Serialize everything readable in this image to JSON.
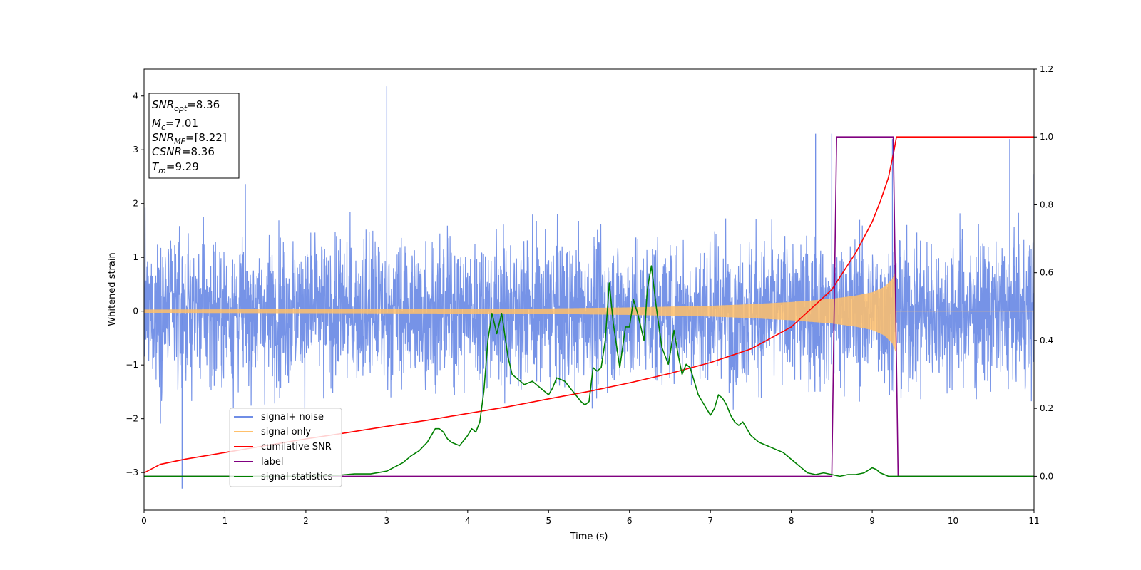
{
  "chart_data": {
    "type": "line",
    "title": "",
    "xlabel": "Time (s)",
    "ylabel": "Whitened strain",
    "xlim": [
      0,
      11
    ],
    "ylim": [
      -3.7,
      4.5
    ],
    "y2lim": [
      -0.1,
      1.2
    ],
    "xticks": [
      "0",
      "1",
      "2",
      "3",
      "4",
      "5",
      "6",
      "7",
      "8",
      "9",
      "10",
      "11"
    ],
    "yticks": [
      "−3",
      "−2",
      "−1",
      "0",
      "1",
      "2",
      "3",
      "4"
    ],
    "yticks_values": [
      -3,
      -2,
      -1,
      0,
      1,
      2,
      3,
      4
    ],
    "y2ticks": [
      "0.0",
      "0.2",
      "0.4",
      "0.6",
      "0.8",
      "1.0",
      "1.2"
    ],
    "y2ticks_values": [
      0,
      0.2,
      0.4,
      0.6,
      0.8,
      1.0,
      1.2
    ],
    "grid": false,
    "info_box": {
      "snr_opt": {
        "var": "SNR",
        "sub": "opt",
        "value": "=8.36"
      },
      "mc": {
        "var": "M",
        "sub": "c",
        "value": "=7.01"
      },
      "snr_mf": {
        "var": "SNR",
        "sub": "MF",
        "value": "=[8.22]"
      },
      "csnr": {
        "var": "CSNR",
        "sub": "",
        "value": "=8.36"
      },
      "tm": {
        "var": "T",
        "sub": "m",
        "value": "=9.29"
      }
    },
    "legend": {
      "placement": "lower-left",
      "entries": [
        {
          "label": "signal+ noise",
          "color": "#6f8de6"
        },
        {
          "label": "signal only",
          "color": "#ffc06b"
        },
        {
          "label": "cumilative SNR",
          "color": "#ff0000"
        },
        {
          "label": "label",
          "color": "#800080"
        },
        {
          "label": "signal statistics",
          "color": "#008000"
        }
      ]
    },
    "series": [
      {
        "name": "signal+ noise",
        "axis": "left",
        "color": "#6f8de6",
        "noise_envelope": {
          "typical_max": 2.0,
          "typical_min": -2.0,
          "peak_max": 4.18,
          "peak_min": -3.3
        },
        "spikes": [
          [
            0.47,
            -3.3
          ],
          [
            3.0,
            4.18
          ],
          [
            8.3,
            3.3
          ],
          [
            8.5,
            3.3
          ],
          [
            9.25,
            3.2
          ],
          [
            10.7,
            3.2
          ],
          [
            11.0,
            2.55
          ]
        ]
      },
      {
        "name": "signal only",
        "axis": "left",
        "color": "#ffc06b",
        "envelope": [
          [
            0,
            0.03
          ],
          [
            3,
            0.04
          ],
          [
            5,
            0.05
          ],
          [
            6,
            0.07
          ],
          [
            7,
            0.1
          ],
          [
            7.5,
            0.13
          ],
          [
            8,
            0.17
          ],
          [
            8.5,
            0.23
          ],
          [
            8.8,
            0.29
          ],
          [
            9.0,
            0.35
          ],
          [
            9.15,
            0.45
          ],
          [
            9.25,
            0.6
          ],
          [
            9.29,
            0.75
          ],
          [
            9.3,
            0.0
          ],
          [
            11,
            0.0
          ]
        ]
      },
      {
        "name": "cumilative SNR",
        "axis": "right",
        "color": "#ff0000",
        "x": [
          0,
          0.2,
          0.5,
          1,
          1.5,
          2,
          2.5,
          3,
          3.5,
          4,
          4.5,
          5,
          5.5,
          6,
          6.5,
          7,
          7.5,
          8,
          8.5,
          8.8,
          9.0,
          9.1,
          9.2,
          9.27,
          9.3,
          11
        ],
        "values": [
          0.01,
          0.035,
          0.05,
          0.07,
          0.09,
          0.11,
          0.128,
          0.147,
          0.165,
          0.185,
          0.205,
          0.228,
          0.25,
          0.275,
          0.303,
          0.335,
          0.375,
          0.44,
          0.55,
          0.66,
          0.75,
          0.81,
          0.88,
          0.96,
          1.0,
          1.0
        ]
      },
      {
        "name": "label",
        "axis": "right",
        "color": "#800080",
        "x": [
          0,
          8.5,
          8.56,
          9.26,
          9.32,
          11
        ],
        "values": [
          0,
          0,
          1,
          1,
          0,
          0
        ]
      },
      {
        "name": "signal statistics",
        "axis": "right",
        "color": "#008000",
        "x": [
          0,
          2.0,
          2.4,
          2.6,
          2.8,
          3.0,
          3.2,
          3.3,
          3.4,
          3.5,
          3.55,
          3.6,
          3.65,
          3.7,
          3.75,
          3.8,
          3.9,
          4.0,
          4.05,
          4.1,
          4.15,
          4.2,
          4.25,
          4.3,
          4.36,
          4.42,
          4.5,
          4.55,
          4.6,
          4.7,
          4.8,
          4.9,
          5.0,
          5.05,
          5.1,
          5.2,
          5.3,
          5.4,
          5.45,
          5.5,
          5.55,
          5.6,
          5.65,
          5.7,
          5.75,
          5.8,
          5.88,
          5.95,
          6.0,
          6.05,
          6.1,
          6.18,
          6.22,
          6.27,
          6.33,
          6.4,
          6.48,
          6.55,
          6.6,
          6.65,
          6.7,
          6.75,
          6.8,
          6.85,
          6.9,
          6.95,
          7.0,
          7.05,
          7.1,
          7.15,
          7.2,
          7.25,
          7.3,
          7.35,
          7.4,
          7.5,
          7.6,
          7.7,
          7.8,
          7.9,
          8.0,
          8.1,
          8.2,
          8.3,
          8.4,
          8.5,
          8.6,
          8.7,
          8.8,
          8.9,
          9.0,
          9.05,
          9.1,
          9.2,
          9.3,
          11
        ],
        "values": [
          0.0,
          0.0,
          0.003,
          0.007,
          0.007,
          0.015,
          0.04,
          0.06,
          0.075,
          0.1,
          0.12,
          0.14,
          0.14,
          0.13,
          0.11,
          0.1,
          0.09,
          0.12,
          0.14,
          0.13,
          0.16,
          0.25,
          0.4,
          0.48,
          0.42,
          0.48,
          0.35,
          0.3,
          0.29,
          0.27,
          0.28,
          0.26,
          0.24,
          0.26,
          0.29,
          0.28,
          0.25,
          0.22,
          0.21,
          0.22,
          0.32,
          0.31,
          0.32,
          0.4,
          0.57,
          0.45,
          0.32,
          0.44,
          0.44,
          0.52,
          0.48,
          0.4,
          0.55,
          0.62,
          0.5,
          0.38,
          0.33,
          0.43,
          0.36,
          0.3,
          0.33,
          0.32,
          0.28,
          0.24,
          0.22,
          0.2,
          0.18,
          0.2,
          0.24,
          0.23,
          0.21,
          0.18,
          0.16,
          0.15,
          0.16,
          0.12,
          0.1,
          0.09,
          0.08,
          0.07,
          0.05,
          0.03,
          0.01,
          0.005,
          0.01,
          0.005,
          0.0,
          0.005,
          0.005,
          0.01,
          0.025,
          0.02,
          0.01,
          0.0,
          0.0,
          0.0
        ]
      }
    ]
  }
}
